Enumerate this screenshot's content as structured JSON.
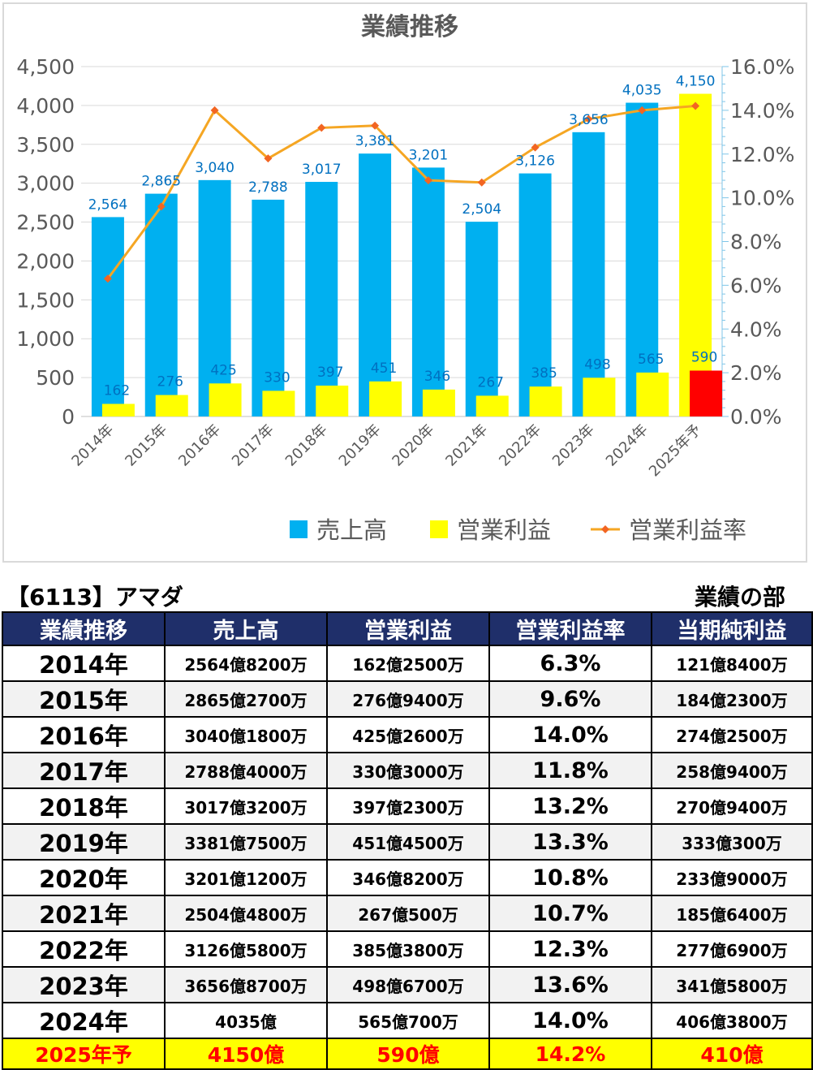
{
  "chart_data": {
    "type": "bar",
    "title": "業績推移",
    "categories": [
      "2014年",
      "2015年",
      "2016年",
      "2017年",
      "2018年",
      "2019年",
      "2020年",
      "2021年",
      "2022年",
      "2023年",
      "2024年",
      "2025年予"
    ],
    "series": [
      {
        "name": "売上高",
        "type": "bar",
        "axis": "left",
        "color": "#00b0f0",
        "values": [
          2564,
          2865,
          3040,
          2788,
          3017,
          3381,
          3201,
          2504,
          3126,
          3656,
          4035,
          4150
        ],
        "labels": [
          "2,564",
          "2,865",
          "3,040",
          "2,788",
          "3,017",
          "3,381",
          "3,201",
          "2,504",
          "3,126",
          "3,656",
          "4,035",
          "4,150"
        ]
      },
      {
        "name": "営業利益",
        "type": "bar",
        "axis": "left",
        "color": "#ffff00",
        "values": [
          162,
          276,
          425,
          330,
          397,
          451,
          346,
          267,
          385,
          498,
          565,
          590
        ],
        "labels": [
          "162",
          "276",
          "425",
          "330",
          "397",
          "451",
          "346",
          "267",
          "385",
          "498",
          "565",
          "590"
        ]
      },
      {
        "name": "営業利益率",
        "type": "line",
        "axis": "right",
        "color": "#f5a623",
        "values": [
          6.3,
          9.6,
          14.0,
          11.8,
          13.2,
          13.3,
          10.8,
          10.7,
          12.3,
          13.6,
          14.0,
          14.2
        ]
      }
    ],
    "forecast_colors": {
      "sales": "#ffff00",
      "profit": "#ff0000"
    },
    "y_left": {
      "min": 0,
      "max": 4500,
      "ticks": [
        "0",
        "500",
        "1,000",
        "1,500",
        "2,000",
        "2,500",
        "3,000",
        "3,500",
        "4,000",
        "4,500"
      ]
    },
    "y_right": {
      "min": 0,
      "max": 16,
      "ticks": [
        "0.0%",
        "2.0%",
        "4.0%",
        "6.0%",
        "8.0%",
        "10.0%",
        "12.0%",
        "14.0%",
        "16.0%"
      ]
    },
    "grid": true,
    "legend_position": "bottom-right"
  },
  "company_title": "【6113】アマダ",
  "section_title": "業績の部",
  "table": {
    "headers": [
      "業績推移",
      "売上高",
      "営業利益",
      "営業利益率",
      "当期純利益"
    ],
    "rows": [
      [
        "2014年",
        "2564億8200万",
        "162億2500万",
        "6.3%",
        "121億8400万"
      ],
      [
        "2015年",
        "2865億2700万",
        "276億9400万",
        "9.6%",
        "184億2300万"
      ],
      [
        "2016年",
        "3040億1800万",
        "425億2600万",
        "14.0%",
        "274億2500万"
      ],
      [
        "2017年",
        "2788億4000万",
        "330億3000万",
        "11.8%",
        "258億9400万"
      ],
      [
        "2018年",
        "3017億3200万",
        "397億2300万",
        "13.2%",
        "270億9400万"
      ],
      [
        "2019年",
        "3381億7500万",
        "451億4500万",
        "13.3%",
        "333億300万"
      ],
      [
        "2020年",
        "3201億1200万",
        "346億8200万",
        "10.8%",
        "233億9000万"
      ],
      [
        "2021年",
        "2504億4800万",
        "267億500万",
        "10.7%",
        "185億6400万"
      ],
      [
        "2022年",
        "3126億5800万",
        "385億3800万",
        "12.3%",
        "277億6900万"
      ],
      [
        "2023年",
        "3656億8700万",
        "498億6700万",
        "13.6%",
        "341億5800万"
      ],
      [
        "2024年",
        "4035億",
        "565億700万",
        "14.0%",
        "406億3800万"
      ]
    ],
    "forecast_row": [
      "2025年予",
      "4150億",
      "590億",
      "14.2%",
      "410億"
    ]
  }
}
